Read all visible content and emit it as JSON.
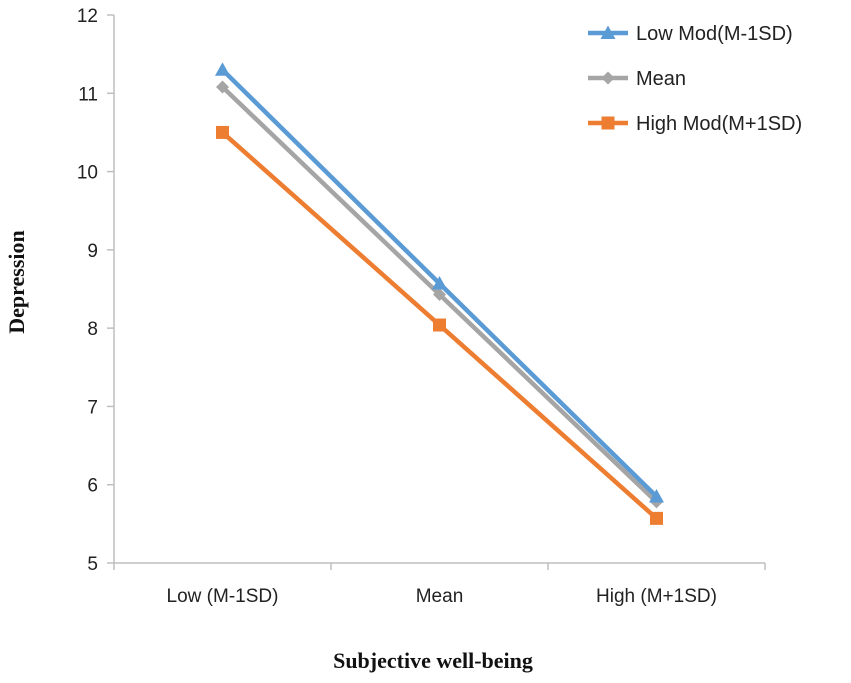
{
  "chart_data": {
    "type": "line",
    "title": "",
    "xlabel": "Subjective well-being",
    "ylabel": "Depression",
    "categories": [
      "Low (M-1SD)",
      "Mean",
      "High (M+1SD)"
    ],
    "ylim": [
      5,
      12
    ],
    "yticks": [
      5,
      6,
      7,
      8,
      9,
      10,
      11,
      12
    ],
    "grid": false,
    "legend_position": "top-right",
    "series": [
      {
        "name": "Low Mod(M-1SD)",
        "values": [
          11.3,
          8.57,
          5.85
        ],
        "color": "#5b9bd5",
        "marker": "triangle"
      },
      {
        "name": "Mean",
        "values": [
          11.08,
          8.43,
          5.78
        ],
        "color": "#a5a5a5",
        "marker": "diamond"
      },
      {
        "name": "High Mod(M+1SD)",
        "values": [
          10.5,
          8.04,
          5.57
        ],
        "color": "#ed7d31",
        "marker": "square"
      }
    ]
  }
}
